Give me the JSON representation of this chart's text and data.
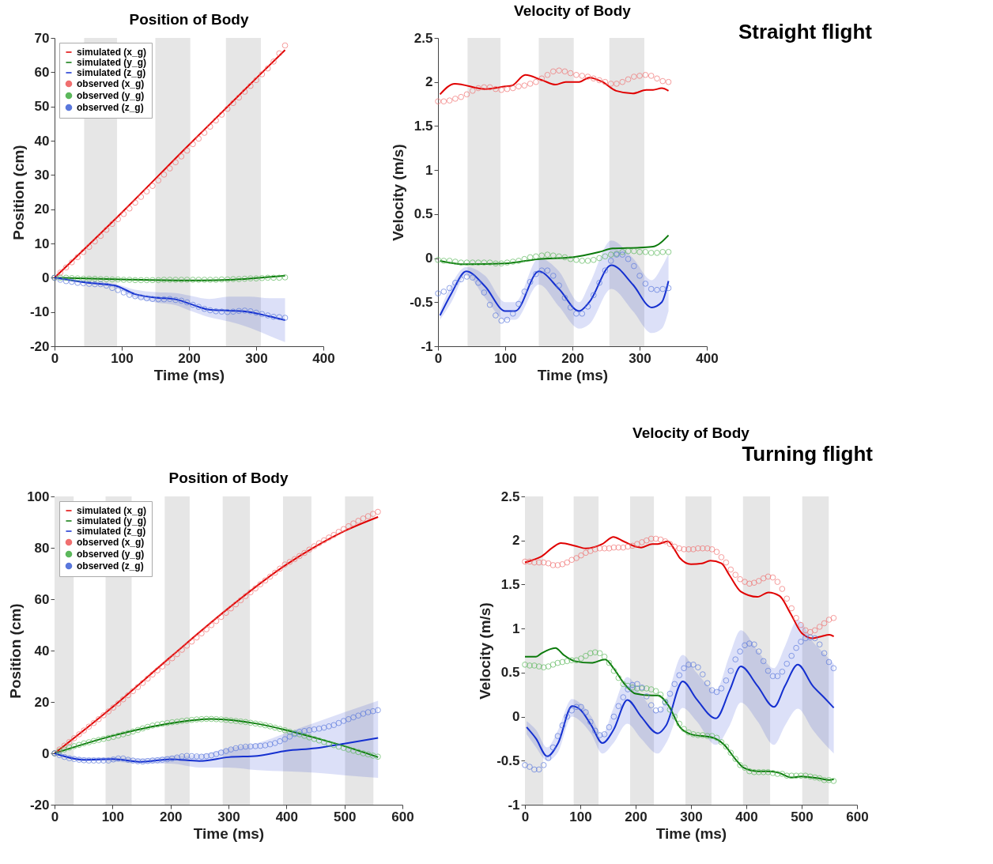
{
  "chart_data": [
    {
      "type": "line",
      "title": "Position of Body",
      "xlabel": "Time (ms)",
      "ylabel": "Position (cm)",
      "xlim": [
        0,
        400
      ],
      "xticks": [
        0,
        100,
        200,
        300,
        400
      ],
      "ylim": [
        -20,
        70
      ],
      "yticks": [
        -20,
        -10,
        0,
        10,
        20,
        30,
        40,
        50,
        60,
        70
      ],
      "legend": "top left",
      "bands": [
        {
          "axis": "x",
          "from": 44,
          "to": 93,
          "color": "#e6e6e6"
        },
        {
          "axis": "x",
          "from": 150,
          "to": 202,
          "color": "#e6e6e6"
        },
        {
          "axis": "x",
          "from": 255,
          "to": 307,
          "color": "#e6e6e6"
        }
      ],
      "x": [
        0,
        8.6,
        17.2,
        25.7,
        34.3,
        42.9,
        51.5,
        60,
        68.6,
        77.2,
        85.8,
        94.3,
        102.9,
        111.5,
        120,
        128.6,
        137.2,
        145.8,
        154.4,
        162.9,
        171.5,
        180.1,
        188.7,
        197.2,
        205.8,
        214.4,
        223,
        231.5,
        240.1,
        248.7,
        257.3,
        265.8,
        274.4,
        283,
        291.6,
        300.1,
        308.7,
        317.3,
        325.9,
        334.4,
        343
      ],
      "series": [
        {
          "name": "simulated (x_g)",
          "type": "line",
          "color": "#e00000",
          "x": [
            0,
            100,
            200,
            300,
            343
          ],
          "values": [
            0,
            19,
            38.8,
            58.2,
            66.5
          ]
        },
        {
          "name": "simulated (y_g)",
          "type": "line",
          "color": "#0b7a0b",
          "x": [
            0,
            100,
            200,
            260,
            300,
            343
          ],
          "values": [
            0,
            -0.5,
            -0.8,
            -0.6,
            -0.1,
            0.6
          ]
        },
        {
          "name": "simulated (z_g)",
          "type": "line",
          "color": "#1530d0",
          "x": [
            0,
            50,
            90,
            120,
            150,
            180,
            200,
            230,
            260,
            290,
            320,
            343
          ],
          "values": [
            0,
            -1.5,
            -2.3,
            -4.8,
            -5.8,
            -6.3,
            -7.5,
            -9.3,
            -9.6,
            -10,
            -11.3,
            -12.4
          ],
          "lower": [
            0,
            -1.8,
            -3,
            -5.8,
            -7.2,
            -8,
            -9.5,
            -11.5,
            -12.8,
            -14.6,
            -17,
            -18.8
          ],
          "upper": [
            0,
            -1.2,
            -1.8,
            -3.5,
            -4.2,
            -4.5,
            -5.2,
            -6.2,
            -5.5,
            -5.5,
            -6,
            -6
          ]
        },
        {
          "name": "observed (x_g)",
          "type": "scatter",
          "marker": "circle",
          "color": "#f07070",
          "values": [
            0,
            1.5,
            3,
            4.5,
            6,
            7.5,
            9,
            10.6,
            12.2,
            14,
            15.7,
            17.1,
            18.6,
            20.2,
            21.9,
            23.6,
            25.2,
            26.8,
            28.4,
            30.1,
            31.9,
            33.7,
            35.4,
            37.1,
            39,
            40.6,
            42.3,
            44.1,
            45.9,
            47.6,
            49.3,
            51,
            52.6,
            54.3,
            56,
            57.7,
            59.4,
            61.1,
            63.1,
            65.5,
            67.8
          ]
        },
        {
          "name": "observed (y_g)",
          "type": "scatter",
          "marker": "circle",
          "color": "#5cb85c",
          "values": [
            0,
            0,
            0,
            -0.1,
            -0.2,
            -0.3,
            -0.3,
            -0.3,
            -0.4,
            -0.4,
            -0.5,
            -0.5,
            -0.6,
            -0.6,
            -0.7,
            -0.7,
            -0.7,
            -0.7,
            -0.7,
            -0.6,
            -0.6,
            -0.6,
            -0.6,
            -0.6,
            -0.6,
            -0.6,
            -0.6,
            -0.6,
            -0.6,
            -0.5,
            -0.5,
            -0.4,
            -0.4,
            -0.3,
            -0.2,
            -0.2,
            -0.1,
            0,
            0,
            0,
            0.1
          ]
        },
        {
          "name": "observed (z_g)",
          "type": "scatter",
          "marker": "circle",
          "color": "#5a78dc",
          "values": [
            0,
            -0.6,
            -1,
            -1.2,
            -1.5,
            -1.6,
            -1.8,
            -1.9,
            -1.9,
            -2.3,
            -3,
            -3.6,
            -4.3,
            -5,
            -5.4,
            -5.7,
            -6,
            -6.2,
            -6.3,
            -6.3,
            -6.2,
            -6.5,
            -6.7,
            -7.2,
            -7.9,
            -8.5,
            -9.1,
            -9.5,
            -9.8,
            -9.9,
            -10,
            -9.9,
            -9.7,
            -9.6,
            -9.8,
            -10.2,
            -10.6,
            -11,
            -11.4,
            -11.5,
            -11.7
          ]
        }
      ]
    },
    {
      "type": "line",
      "title": "Velocity of Body",
      "xlabel": "Time (ms)",
      "ylabel": "Velocity (m/s)",
      "xlim": [
        0,
        400
      ],
      "xticks": [
        0,
        100,
        200,
        300,
        400
      ],
      "ylim": [
        -1,
        2.5
      ],
      "yticks": [
        -1,
        -0.5,
        0,
        0.5,
        1,
        1.5,
        2,
        2.5
      ],
      "annotations": [
        "Straight flight"
      ],
      "bands": [
        {
          "axis": "x",
          "from": 44,
          "to": 93,
          "color": "#e6e6e6"
        },
        {
          "axis": "x",
          "from": 150,
          "to": 202,
          "color": "#e6e6e6"
        },
        {
          "axis": "x",
          "from": 255,
          "to": 307,
          "color": "#e6e6e6"
        }
      ],
      "x": [
        0,
        8.6,
        17.2,
        25.7,
        34.3,
        42.9,
        51.5,
        60,
        68.6,
        77.2,
        85.8,
        94.3,
        102.9,
        111.5,
        120,
        128.6,
        137.2,
        145.8,
        154.4,
        162.9,
        171.5,
        180.1,
        188.7,
        197.2,
        205.8,
        214.4,
        223,
        231.5,
        240.1,
        248.7,
        257.3,
        265.8,
        274.4,
        283,
        291.6,
        300.1,
        308.7,
        317.3,
        325.9,
        334.4,
        343
      ],
      "series": [
        {
          "type": "line",
          "color": "#e00000",
          "x": [
            3,
            25,
            70,
            100,
            110,
            130,
            155,
            175,
            190,
            210,
            225,
            245,
            265,
            290,
            310,
            320,
            333,
            343
          ],
          "values": [
            1.86,
            1.98,
            1.92,
            1.95,
            1.96,
            2.08,
            2.02,
            1.97,
            2,
            2,
            2.05,
            2,
            1.9,
            1.87,
            1.91,
            1.91,
            1.93,
            1.9
          ]
        },
        {
          "type": "line",
          "color": "#0b7a0b",
          "x": [
            3,
            40,
            100,
            150,
            200,
            240,
            260,
            300,
            320,
            343
          ],
          "values": [
            -0.03,
            -0.07,
            -0.06,
            -0.01,
            0.01,
            0.07,
            0.11,
            0.12,
            0.13,
            0.26
          ]
        },
        {
          "type": "line",
          "color": "#1530d0",
          "x": [
            3,
            20,
            42,
            70,
            100,
            115,
            150,
            180,
            210,
            225,
            258,
            290,
            318,
            333,
            343
          ],
          "values": [
            -0.65,
            -0.4,
            -0.15,
            -0.32,
            -0.6,
            -0.6,
            -0.15,
            -0.35,
            -0.6,
            -0.5,
            -0.08,
            -0.3,
            -0.56,
            -0.5,
            -0.26
          ],
          "lower": [
            -0.7,
            -0.5,
            -0.2,
            -0.45,
            -0.7,
            -0.7,
            -0.3,
            -0.55,
            -0.8,
            -0.75,
            -0.35,
            -0.6,
            -0.85,
            -0.8,
            -0.6
          ],
          "upper": [
            -0.6,
            -0.3,
            -0.1,
            -0.2,
            -0.5,
            -0.5,
            0,
            -0.15,
            -0.5,
            -0.3,
            0.2,
            0,
            -0.25,
            -0.1,
            0.05
          ]
        },
        {
          "type": "scatter",
          "marker": "circle",
          "color": "#f07070",
          "values": [
            1.78,
            1.78,
            1.79,
            1.81,
            1.83,
            1.86,
            1.9,
            1.93,
            1.94,
            1.94,
            1.92,
            1.91,
            1.92,
            1.93,
            1.95,
            1.96,
            1.98,
            2,
            2.04,
            2.08,
            2.12,
            2.13,
            2.12,
            2.1,
            2.08,
            2.07,
            2.06,
            2.04,
            2.02,
            2,
            1.98,
            1.98,
            2,
            2.03,
            2.06,
            2.07,
            2.08,
            2.07,
            2.04,
            2.01,
            2
          ]
        },
        {
          "type": "scatter",
          "marker": "circle",
          "color": "#5cb85c",
          "values": [
            -0.02,
            -0.03,
            -0.03,
            -0.04,
            -0.05,
            -0.05,
            -0.05,
            -0.05,
            -0.05,
            -0.05,
            -0.06,
            -0.06,
            -0.05,
            -0.04,
            -0.03,
            -0.01,
            0.01,
            0.02,
            0.03,
            0.04,
            0.03,
            0.02,
            0.01,
            -0.01,
            -0.02,
            -0.03,
            -0.03,
            -0.02,
            0,
            0.02,
            0.04,
            0.05,
            0.07,
            0.08,
            0.08,
            0.07,
            0.07,
            0.06,
            0.06,
            0.07,
            0.07
          ]
        },
        {
          "type": "scatter",
          "marker": "circle",
          "color": "#5a78dc",
          "values": [
            -0.4,
            -0.38,
            -0.34,
            -0.28,
            -0.24,
            -0.21,
            -0.22,
            -0.28,
            -0.39,
            -0.53,
            -0.65,
            -0.71,
            -0.7,
            -0.63,
            -0.52,
            -0.38,
            -0.27,
            -0.18,
            -0.14,
            -0.14,
            -0.2,
            -0.31,
            -0.45,
            -0.56,
            -0.63,
            -0.63,
            -0.55,
            -0.42,
            -0.28,
            -0.14,
            -0.03,
            0.04,
            0.04,
            -0.01,
            -0.09,
            -0.2,
            -0.29,
            -0.35,
            -0.36,
            -0.35,
            -0.34
          ]
        }
      ]
    },
    {
      "type": "line",
      "title": "Position of Body",
      "xlabel": "Time (ms)",
      "ylabel": "Position (cm)",
      "xlim": [
        0,
        600
      ],
      "xticks": [
        0,
        100,
        200,
        300,
        400,
        500,
        600
      ],
      "ylim": [
        -20,
        100
      ],
      "yticks": [
        -20,
        0,
        20,
        40,
        60,
        80,
        100
      ],
      "legend": "top left",
      "bands": [
        {
          "axis": "x",
          "from": 0,
          "to": 33,
          "color": "#e6e6e6"
        },
        {
          "axis": "x",
          "from": 88,
          "to": 133,
          "color": "#e6e6e6"
        },
        {
          "axis": "x",
          "from": 190,
          "to": 233,
          "color": "#e6e6e6"
        },
        {
          "axis": "x",
          "from": 290,
          "to": 337,
          "color": "#e6e6e6"
        },
        {
          "axis": "x",
          "from": 394,
          "to": 443,
          "color": "#e6e6e6"
        },
        {
          "axis": "x",
          "from": 501,
          "to": 550,
          "color": "#e6e6e6"
        }
      ],
      "x": [
        0,
        8.5,
        16.9,
        25.4,
        33.8,
        42.3,
        50.7,
        59.2,
        67.6,
        76.1,
        84.5,
        93,
        101.4,
        109.9,
        118.3,
        126.8,
        135.2,
        143.7,
        152.1,
        160.6,
        169,
        177.5,
        185.9,
        194.4,
        202.8,
        211.3,
        219.7,
        228.2,
        236.6,
        245.1,
        253.5,
        262,
        270.4,
        278.9,
        287.3,
        295.8,
        304.2,
        312.7,
        321.1,
        329.6,
        338,
        346.5,
        354.9,
        363.4,
        371.8,
        380.3,
        388.7,
        397.2,
        405.6,
        414.1,
        422.5,
        431,
        439.4,
        447.9,
        456.3,
        464.8,
        473.2,
        481.7,
        490.1,
        498.6,
        507,
        515.5,
        523.9,
        532.4,
        540.8,
        549.3,
        557.7
      ],
      "series": [
        {
          "name": "simulated (x_g)",
          "type": "line",
          "color": "#e00000",
          "x": [
            0,
            100,
            200,
            300,
            400,
            450,
            500,
            558
          ],
          "values": [
            0,
            18,
            37.5,
            56.5,
            73.5,
            80.5,
            86.5,
            92
          ]
        },
        {
          "name": "simulated (y_g)",
          "type": "line",
          "color": "#0b7a0b",
          "x": [
            0,
            100,
            200,
            270,
            350,
            400,
            450,
            500,
            558
          ],
          "values": [
            0,
            6.8,
            11.7,
            13.4,
            11.5,
            9,
            6,
            2.8,
            -1.5
          ]
        },
        {
          "name": "simulated (z_g)",
          "type": "line",
          "color": "#1530d0",
          "x": [
            0,
            50,
            100,
            150,
            200,
            250,
            300,
            350,
            400,
            450,
            500,
            558
          ],
          "values": [
            0,
            -2.5,
            -2.2,
            -3.3,
            -2.3,
            -3,
            -1.5,
            -1,
            1,
            2,
            3.8,
            6
          ],
          "lower": [
            0,
            -3,
            -3.2,
            -4,
            -4,
            -5.5,
            -5.5,
            -6.5,
            -7,
            -7.5,
            -8.5,
            -9.5
          ],
          "upper": [
            0,
            -1.5,
            -1.5,
            -2,
            -1,
            -0.5,
            2,
            4,
            8,
            12,
            16,
            20.5
          ]
        },
        {
          "name": "observed (x_g)",
          "type": "scatter",
          "marker": "circle",
          "color": "#f07070",
          "values": [
            0,
            1.5,
            3,
            4.4,
            5.9,
            7.4,
            8.9,
            10.4,
            11.8,
            13.3,
            14.8,
            16.3,
            17.8,
            19.4,
            21,
            22.6,
            24.2,
            25.8,
            27.4,
            29.1,
            30.7,
            32.3,
            33.8,
            35.4,
            37,
            38.6,
            40.3,
            41.9,
            43.5,
            45.1,
            46.7,
            48.3,
            49.9,
            51.5,
            53.1,
            54.7,
            56.4,
            58,
            59.6,
            61.2,
            62.7,
            64.2,
            65.8,
            67.3,
            68.8,
            70.3,
            71.9,
            73.5,
            74.5,
            75.6,
            76.8,
            78,
            79.3,
            80.6,
            81.8,
            82.9,
            84,
            85,
            86.2,
            87.3,
            88.4,
            89.5,
            90.5,
            91.4,
            92.3,
            93.2,
            94
          ]
        },
        {
          "name": "observed (y_g)",
          "type": "scatter",
          "marker": "circle",
          "color": "#5cb85c",
          "values": [
            0,
            0.8,
            1.5,
            2.2,
            2.8,
            3.3,
            3.9,
            4.3,
            4.8,
            5.2,
            5.6,
            6,
            6.4,
            6.9,
            7.4,
            7.9,
            8.5,
            9.1,
            9.7,
            10.3,
            10.8,
            11.2,
            11.5,
            11.8,
            12.1,
            12.3,
            12.6,
            12.8,
            13,
            13.2,
            13.3,
            13.4,
            13.4,
            13.3,
            13.2,
            13,
            12.8,
            12.6,
            12.4,
            12.2,
            11.9,
            11.6,
            11.3,
            10.9,
            10.5,
            10,
            9.5,
            9,
            8.4,
            7.9,
            7.4,
            6.8,
            6.2,
            5.6,
            5,
            4.4,
            3.8,
            3.2,
            2.6,
            2.1,
            1.5,
            1,
            0.5,
            0,
            -0.4,
            -0.9,
            -1.3
          ]
        },
        {
          "name": "observed (z_g)",
          "type": "scatter",
          "marker": "circle",
          "color": "#5a78dc",
          "values": [
            0,
            -0.7,
            -1.4,
            -1.9,
            -2.2,
            -2.5,
            -2.7,
            -2.8,
            -2.8,
            -2.8,
            -2.8,
            -2.8,
            -2.4,
            -2,
            -2,
            -2.5,
            -2.8,
            -3.1,
            -3.2,
            -3,
            -2.8,
            -2.7,
            -2.5,
            -2.3,
            -2,
            -1.6,
            -1.2,
            -1,
            -1.1,
            -1.2,
            -1.3,
            -1.1,
            -0.8,
            -0.3,
            0.3,
            0.9,
            1.5,
            2,
            2.4,
            2.6,
            2.7,
            2.8,
            2.9,
            3.1,
            3.5,
            4,
            4.7,
            5.5,
            6.5,
            7.5,
            8.3,
            8.7,
            9,
            9.3,
            9.6,
            10,
            10.5,
            11,
            11.8,
            12.6,
            13.3,
            14,
            14.7,
            15.4,
            16,
            16.4,
            16.8
          ]
        }
      ]
    },
    {
      "type": "line",
      "title": "Velocity of Body",
      "xlabel": "Time (ms)",
      "ylabel": "Velocity (m/s)",
      "xlim": [
        0,
        600
      ],
      "xticks": [
        0,
        100,
        200,
        300,
        400,
        500,
        600
      ],
      "ylim": [
        -1,
        2.5
      ],
      "yticks": [
        -1,
        -0.5,
        0,
        0.5,
        1,
        1.5,
        2,
        2.5
      ],
      "annotations": [
        "Turning flight"
      ],
      "bands": [
        {
          "axis": "x",
          "from": 0,
          "to": 33,
          "color": "#e6e6e6"
        },
        {
          "axis": "x",
          "from": 88,
          "to": 133,
          "color": "#e6e6e6"
        },
        {
          "axis": "x",
          "from": 190,
          "to": 233,
          "color": "#e6e6e6"
        },
        {
          "axis": "x",
          "from": 290,
          "to": 337,
          "color": "#e6e6e6"
        },
        {
          "axis": "x",
          "from": 394,
          "to": 443,
          "color": "#e6e6e6"
        },
        {
          "axis": "x",
          "from": 501,
          "to": 549,
          "color": "#e6e6e6"
        }
      ],
      "x": [
        0,
        8.5,
        16.9,
        25.4,
        33.8,
        42.3,
        50.7,
        59.2,
        67.6,
        76.1,
        84.5,
        93,
        101.4,
        109.9,
        118.3,
        126.8,
        135.2,
        143.7,
        152.1,
        160.6,
        169,
        177.5,
        185.9,
        194.4,
        202.8,
        211.3,
        219.7,
        228.2,
        236.6,
        245.1,
        253.5,
        262,
        270.4,
        278.9,
        287.3,
        295.8,
        304.2,
        312.7,
        321.1,
        329.6,
        338,
        346.5,
        354.9,
        363.4,
        371.8,
        380.3,
        388.7,
        397.2,
        405.6,
        414.1,
        422.5,
        431,
        439.4,
        447.9,
        456.3,
        464.8,
        473.2,
        481.7,
        490.1,
        498.6,
        507,
        515.5,
        523.9,
        532.4,
        540.8,
        549.3,
        557.7
      ],
      "series": [
        {
          "type": "line",
          "color": "#e00000",
          "x": [
            0,
            15,
            30,
            50,
            65,
            90,
            110,
            140,
            160,
            175,
            200,
            210,
            230,
            240,
            258,
            270,
            280,
            300,
            320,
            335,
            355,
            370,
            390,
            420,
            440,
            460,
            480,
            500,
            520,
            535,
            550,
            558
          ],
          "values": [
            1.75,
            1.78,
            1.82,
            1.92,
            1.97,
            1.94,
            1.91,
            1.96,
            2.04,
            2,
            1.93,
            1.92,
            1.96,
            1.96,
            1.99,
            1.9,
            1.8,
            1.73,
            1.74,
            1.77,
            1.74,
            1.6,
            1.42,
            1.36,
            1.41,
            1.37,
            1.17,
            0.95,
            0.89,
            0.91,
            0.93,
            0.91
          ]
        },
        {
          "type": "line",
          "color": "#0b7a0b",
          "x": [
            0,
            20,
            30,
            55,
            70,
            90,
            120,
            145,
            160,
            180,
            200,
            230,
            240,
            260,
            280,
            300,
            340,
            360,
            380,
            395,
            420,
            440,
            460,
            480,
            500,
            530,
            550,
            558
          ],
          "values": [
            0.68,
            0.68,
            0.72,
            0.78,
            0.7,
            0.63,
            0.61,
            0.65,
            0.55,
            0.37,
            0.26,
            0.24,
            0.24,
            0.12,
            -0.12,
            -0.2,
            -0.24,
            -0.32,
            -0.48,
            -0.58,
            -0.62,
            -0.62,
            -0.64,
            -0.69,
            -0.68,
            -0.7,
            -0.72,
            -0.71
          ]
        },
        {
          "type": "line",
          "color": "#1530d0",
          "x": [
            3,
            20,
            40,
            60,
            85,
            100,
            120,
            140,
            160,
            185,
            210,
            240,
            255,
            285,
            310,
            345,
            370,
            390,
            420,
            450,
            470,
            493,
            520,
            540,
            558
          ],
          "values": [
            -0.12,
            -0.25,
            -0.45,
            -0.3,
            0.12,
            0.08,
            -0.1,
            -0.3,
            -0.15,
            0.19,
            0,
            -0.19,
            -0.1,
            0.4,
            0.2,
            -0.02,
            0.3,
            0.57,
            0.35,
            0.11,
            0.35,
            0.59,
            0.35,
            0.22,
            0.1
          ],
          "lower": [
            -0.2,
            -0.35,
            -0.5,
            -0.4,
            0,
            -0.05,
            -0.2,
            -0.42,
            -0.3,
            -0.08,
            -0.25,
            -0.42,
            -0.3,
            0.1,
            -0.05,
            -0.32,
            -0.1,
            0.16,
            -0.05,
            -0.32,
            -0.1,
            0.09,
            -0.15,
            -0.3,
            -0.42
          ],
          "upper": [
            -0.05,
            -0.15,
            -0.35,
            -0.15,
            0.2,
            0.15,
            0,
            -0.2,
            0.1,
            0.45,
            0.25,
            0.05,
            0.2,
            0.7,
            0.5,
            0.3,
            0.7,
            0.98,
            0.75,
            0.55,
            0.8,
            1.1,
            0.85,
            0.72,
            0.6
          ]
        },
        {
          "type": "scatter",
          "marker": "circle",
          "color": "#f07070",
          "values": [
            1.76,
            1.76,
            1.75,
            1.75,
            1.75,
            1.74,
            1.72,
            1.72,
            1.73,
            1.75,
            1.78,
            1.8,
            1.83,
            1.86,
            1.88,
            1.9,
            1.91,
            1.91,
            1.91,
            1.92,
            1.92,
            1.92,
            1.93,
            1.94,
            1.96,
            1.98,
            2,
            2.02,
            2.02,
            2.01,
            1.99,
            1.96,
            1.93,
            1.91,
            1.9,
            1.9,
            1.9,
            1.91,
            1.91,
            1.91,
            1.9,
            1.87,
            1.81,
            1.75,
            1.67,
            1.61,
            1.56,
            1.53,
            1.51,
            1.52,
            1.54,
            1.57,
            1.59,
            1.58,
            1.53,
            1.45,
            1.34,
            1.23,
            1.12,
            1.04,
            0.98,
            0.96,
            0.98,
            1.02,
            1.06,
            1.1,
            1.12
          ]
        },
        {
          "type": "scatter",
          "marker": "circle",
          "color": "#5cb85c",
          "values": [
            0.59,
            0.58,
            0.58,
            0.57,
            0.56,
            0.57,
            0.59,
            0.61,
            0.62,
            0.63,
            0.64,
            0.64,
            0.66,
            0.69,
            0.72,
            0.73,
            0.72,
            0.68,
            0.61,
            0.52,
            0.44,
            0.37,
            0.35,
            0.33,
            0.32,
            0.32,
            0.32,
            0.31,
            0.29,
            0.25,
            0.17,
            0.08,
            0,
            -0.08,
            -0.14,
            -0.18,
            -0.2,
            -0.21,
            -0.21,
            -0.22,
            -0.22,
            -0.24,
            -0.29,
            -0.34,
            -0.41,
            -0.48,
            -0.55,
            -0.58,
            -0.62,
            -0.63,
            -0.63,
            -0.63,
            -0.63,
            -0.64,
            -0.65,
            -0.65,
            -0.67,
            -0.67,
            -0.67,
            -0.67,
            -0.67,
            -0.68,
            -0.69,
            -0.7,
            -0.72,
            -0.72,
            -0.73
          ]
        },
        {
          "type": "scatter",
          "marker": "circle",
          "color": "#5a78dc",
          "values": [
            -0.55,
            -0.57,
            -0.6,
            -0.6,
            -0.55,
            -0.47,
            -0.35,
            -0.22,
            -0.1,
            0,
            0.07,
            0.11,
            0.11,
            0.05,
            -0.06,
            -0.16,
            -0.21,
            -0.2,
            -0.12,
            0,
            0.12,
            0.22,
            0.31,
            0.36,
            0.37,
            0.33,
            0.23,
            0.13,
            0.07,
            0.08,
            0.16,
            0.26,
            0.37,
            0.47,
            0.55,
            0.59,
            0.59,
            0.56,
            0.48,
            0.38,
            0.3,
            0.28,
            0.32,
            0.41,
            0.52,
            0.65,
            0.74,
            0.81,
            0.83,
            0.82,
            0.74,
            0.63,
            0.52,
            0.46,
            0.46,
            0.51,
            0.6,
            0.69,
            0.78,
            0.85,
            0.89,
            0.9,
            0.89,
            0.82,
            0.72,
            0.62,
            0.55
          ]
        }
      ]
    }
  ]
}
